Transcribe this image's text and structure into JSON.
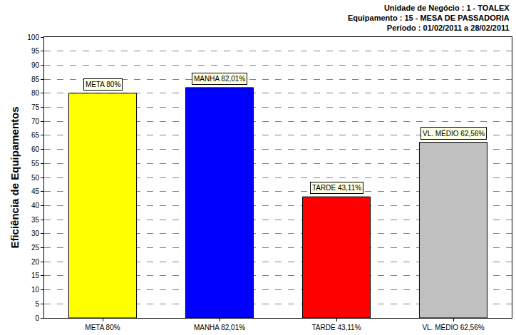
{
  "chart_data": {
    "type": "bar",
    "title": "Unidade de Negócio : 1 - TOALEX\nEquipamento : 15 - MESA DE PASSADORIA\nPeríodo : 01/02/2011 a 28/02/2011",
    "y_label": "Eficiência de Equipamentos",
    "categories": [
      "META 80%",
      "MANHA 82,01%",
      "TARDE 43,11%",
      "VL. MÉDIO 62,56%"
    ],
    "values": [
      80,
      82.01,
      43.11,
      62.56
    ],
    "value_labels": [
      "META 80%",
      "MANHA 82,01%",
      "TARDE 43,11%",
      "VL. MÉDIO 62,56%"
    ],
    "colors": [
      "#ffff00",
      "#0000ff",
      "#ff0000",
      "#c0c0c0"
    ],
    "data_labels": true,
    "ylim": [
      0,
      100
    ],
    "yticks": [
      0,
      5,
      10,
      15,
      20,
      25,
      30,
      35,
      40,
      45,
      50,
      55,
      60,
      65,
      70,
      75,
      80,
      85,
      90,
      95,
      100
    ],
    "grid": true
  }
}
